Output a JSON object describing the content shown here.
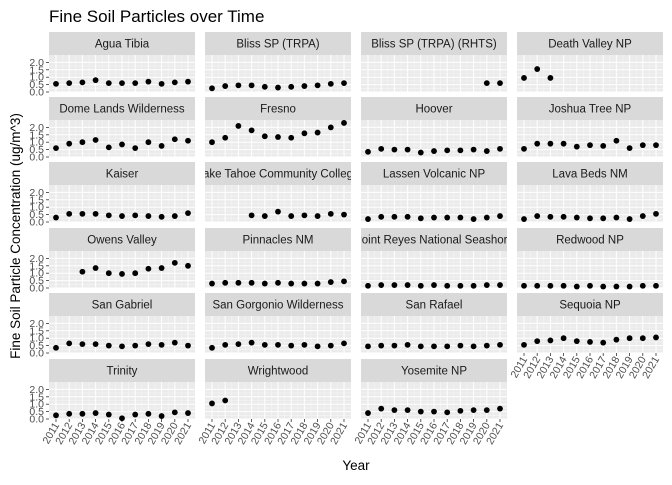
{
  "chart_data": {
    "type": "scatter",
    "title": "Fine Soil Particles over Time",
    "xlabel": "Year",
    "ylabel": "Fine Soil Particle Concentration (ug/m^3)",
    "xlim": [
      2011,
      2021
    ],
    "ylim": [
      0,
      2.5
    ],
    "x_ticks": [
      2011,
      2012,
      2013,
      2014,
      2015,
      2016,
      2017,
      2018,
      2019,
      2020,
      2021
    ],
    "y_ticks": [
      "0.0",
      "0.5",
      "1.0",
      "1.5",
      "2.0"
    ],
    "y_tick_values": [
      0,
      0.5,
      1.0,
      1.5,
      2.0
    ],
    "grid": true,
    "facets": [
      {
        "name": "Agua Tibia",
        "x": [
          2011,
          2012,
          2013,
          2014,
          2015,
          2016,
          2017,
          2018,
          2019,
          2020,
          2021
        ],
        "y": [
          0.55,
          0.6,
          0.65,
          0.8,
          0.6,
          0.6,
          0.6,
          0.7,
          0.55,
          0.65,
          0.7
        ]
      },
      {
        "name": "Bliss SP (TRPA)",
        "x": [
          2011,
          2012,
          2013,
          2014,
          2015,
          2016,
          2017,
          2018,
          2019,
          2020,
          2021
        ],
        "y": [
          0.25,
          0.4,
          0.45,
          0.45,
          0.35,
          0.3,
          0.35,
          0.4,
          0.45,
          0.55,
          0.6
        ]
      },
      {
        "name": "Bliss SP (TRPA) (RHTS)",
        "x": [
          2020,
          2021
        ],
        "y": [
          0.6,
          0.6
        ]
      },
      {
        "name": "Death Valley NP",
        "x": [
          2011,
          2012,
          2013
        ],
        "y": [
          0.95,
          1.55,
          0.95
        ]
      },
      {
        "name": "Dome Lands Wilderness",
        "x": [
          2011,
          2012,
          2013,
          2014,
          2015,
          2016,
          2017,
          2018,
          2019,
          2020,
          2021
        ],
        "y": [
          0.6,
          0.9,
          1.0,
          1.15,
          0.65,
          0.85,
          0.6,
          1.0,
          0.75,
          1.2,
          1.1
        ]
      },
      {
        "name": "Fresno",
        "x": [
          2011,
          2012,
          2013,
          2014,
          2015,
          2016,
          2017,
          2018,
          2019,
          2020,
          2021
        ],
        "y": [
          1.0,
          1.3,
          2.1,
          1.8,
          1.4,
          1.35,
          1.3,
          1.6,
          1.65,
          2.0,
          2.3
        ]
      },
      {
        "name": "Hoover",
        "x": [
          2011,
          2012,
          2013,
          2014,
          2015,
          2016,
          2017,
          2018,
          2019,
          2020,
          2021
        ],
        "y": [
          0.35,
          0.55,
          0.5,
          0.5,
          0.3,
          0.4,
          0.45,
          0.45,
          0.5,
          0.4,
          0.55
        ]
      },
      {
        "name": "Joshua Tree NP",
        "x": [
          2011,
          2012,
          2013,
          2014,
          2015,
          2016,
          2017,
          2018,
          2019,
          2020,
          2021
        ],
        "y": [
          0.55,
          0.9,
          0.9,
          0.9,
          0.7,
          0.8,
          0.75,
          1.1,
          0.6,
          0.8,
          0.8
        ]
      },
      {
        "name": "Kaiser",
        "x": [
          2011,
          2012,
          2013,
          2014,
          2015,
          2016,
          2017,
          2018,
          2019,
          2020,
          2021
        ],
        "y": [
          0.3,
          0.55,
          0.55,
          0.55,
          0.45,
          0.4,
          0.45,
          0.4,
          0.35,
          0.4,
          0.6
        ]
      },
      {
        "name": "Lake Tahoe Community College",
        "x": [
          2014,
          2015,
          2016,
          2017,
          2018,
          2019,
          2020,
          2021
        ],
        "y": [
          0.45,
          0.4,
          0.7,
          0.4,
          0.45,
          0.4,
          0.55,
          0.5
        ]
      },
      {
        "name": "Lassen Volcanic NP",
        "x": [
          2011,
          2012,
          2013,
          2014,
          2015,
          2016,
          2017,
          2018,
          2019,
          2020,
          2021
        ],
        "y": [
          0.2,
          0.35,
          0.35,
          0.35,
          0.25,
          0.3,
          0.3,
          0.3,
          0.2,
          0.3,
          0.4
        ]
      },
      {
        "name": "Lava Beds NM",
        "x": [
          2011,
          2012,
          2013,
          2014,
          2015,
          2016,
          2017,
          2018,
          2019,
          2020,
          2021
        ],
        "y": [
          0.2,
          0.4,
          0.35,
          0.35,
          0.3,
          0.25,
          0.25,
          0.3,
          0.2,
          0.4,
          0.55
        ]
      },
      {
        "name": "Owens Valley",
        "x": [
          2013,
          2014,
          2015,
          2016,
          2017,
          2018,
          2019,
          2020,
          2021
        ],
        "y": [
          1.1,
          1.35,
          1.0,
          0.95,
          1.0,
          1.3,
          1.35,
          1.7,
          1.5
        ]
      },
      {
        "name": "Pinnacles NM",
        "x": [
          2011,
          2012,
          2013,
          2014,
          2015,
          2016,
          2017,
          2018,
          2019,
          2020,
          2021
        ],
        "y": [
          0.3,
          0.35,
          0.35,
          0.35,
          0.3,
          0.35,
          0.3,
          0.3,
          0.3,
          0.4,
          0.45
        ]
      },
      {
        "name": "Point Reyes National Seashore",
        "x": [
          2011,
          2012,
          2013,
          2014,
          2015,
          2016,
          2017,
          2018,
          2019,
          2020,
          2021
        ],
        "y": [
          0.15,
          0.2,
          0.2,
          0.2,
          0.15,
          0.2,
          0.15,
          0.15,
          0.15,
          0.2,
          0.2
        ]
      },
      {
        "name": "Redwood NP",
        "x": [
          2011,
          2012,
          2013,
          2014,
          2015,
          2016,
          2017,
          2018,
          2019,
          2020,
          2021
        ],
        "y": [
          0.15,
          0.15,
          0.15,
          0.15,
          0.1,
          0.15,
          0.1,
          0.1,
          0.1,
          0.15,
          0.15
        ]
      },
      {
        "name": "San Gabriel",
        "x": [
          2011,
          2012,
          2013,
          2014,
          2015,
          2016,
          2017,
          2018,
          2019,
          2020,
          2021
        ],
        "y": [
          0.35,
          0.65,
          0.6,
          0.6,
          0.5,
          0.45,
          0.5,
          0.6,
          0.55,
          0.7,
          0.5
        ]
      },
      {
        "name": "San Gorgonio Wilderness",
        "x": [
          2011,
          2012,
          2013,
          2014,
          2015,
          2016,
          2017,
          2018,
          2019,
          2020,
          2021
        ],
        "y": [
          0.35,
          0.55,
          0.6,
          0.7,
          0.55,
          0.55,
          0.5,
          0.55,
          0.45,
          0.5,
          0.65
        ]
      },
      {
        "name": "San Rafael",
        "x": [
          2011,
          2012,
          2013,
          2014,
          2015,
          2016,
          2017,
          2018,
          2019,
          2020,
          2021
        ],
        "y": [
          0.45,
          0.5,
          0.5,
          0.55,
          0.45,
          0.45,
          0.45,
          0.5,
          0.45,
          0.5,
          0.55
        ]
      },
      {
        "name": "Sequoia NP",
        "x": [
          2011,
          2012,
          2013,
          2014,
          2015,
          2016,
          2017,
          2018,
          2019,
          2020,
          2021
        ],
        "y": [
          0.55,
          0.8,
          0.85,
          1.0,
          0.8,
          0.75,
          0.7,
          0.9,
          1.0,
          1.0,
          1.05
        ]
      },
      {
        "name": "Trinity",
        "x": [
          2011,
          2012,
          2013,
          2014,
          2015,
          2016,
          2017,
          2018,
          2019,
          2020,
          2021
        ],
        "y": [
          0.25,
          0.35,
          0.35,
          0.4,
          0.3,
          0.05,
          0.3,
          0.35,
          0.2,
          0.45,
          0.4
        ]
      },
      {
        "name": "Wrightwood",
        "x": [
          2011,
          2012
        ],
        "y": [
          1.05,
          1.25
        ]
      },
      {
        "name": "Yosemite NP",
        "x": [
          2011,
          2012,
          2013,
          2014,
          2015,
          2016,
          2017,
          2018,
          2019,
          2020,
          2021
        ],
        "y": [
          0.4,
          0.7,
          0.6,
          0.6,
          0.5,
          0.5,
          0.45,
          0.55,
          0.6,
          0.6,
          0.7
        ]
      }
    ]
  },
  "colors": {
    "panel_bg": "#ebebeb",
    "strip_bg": "#d9d9d9",
    "grid_major": "#ffffff",
    "grid_minor": "#f5f5f5",
    "point": "#000000",
    "text": "#1a1a1a",
    "tick_text": "#4d4d4d"
  }
}
